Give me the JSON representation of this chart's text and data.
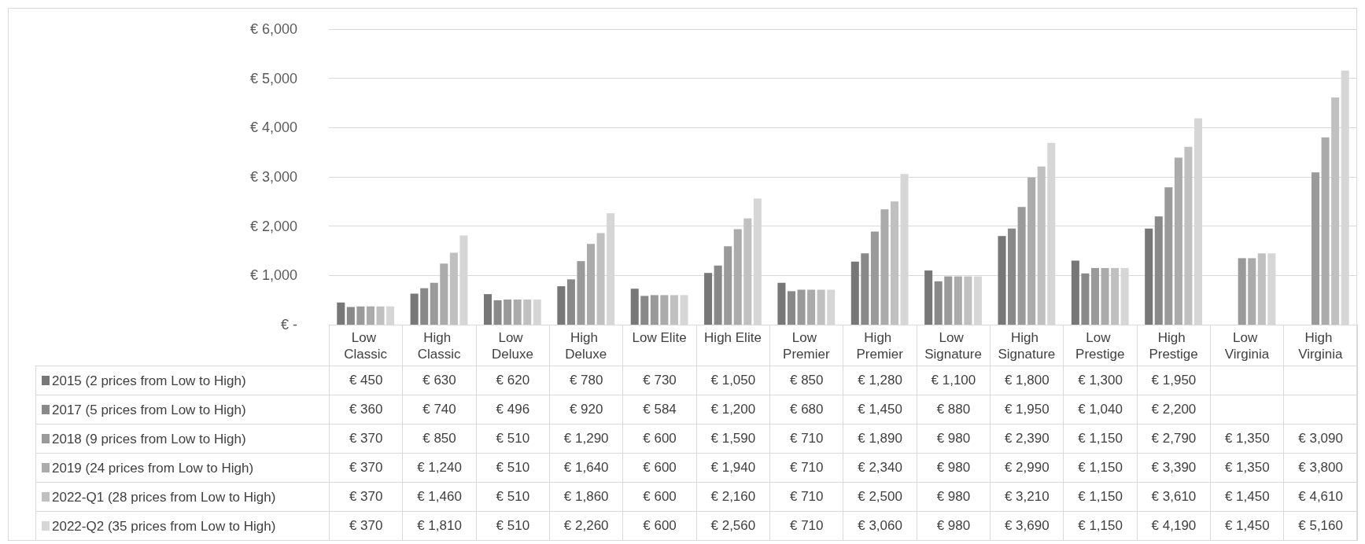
{
  "chart_data": {
    "type": "bar",
    "categories": [
      "Low Classic",
      "High Classic",
      "Low Deluxe",
      "High Deluxe",
      "Low Elite",
      "High Elite",
      "Low Premier",
      "High Premier",
      "Low Signature",
      "High Signature",
      "Low Prestige",
      "High Prestige",
      "Low Virginia",
      "High Virginia"
    ],
    "series": [
      {
        "name": "2015 (2 prices from Low to High)",
        "color": "#777777",
        "values": [
          450,
          630,
          620,
          780,
          730,
          1050,
          850,
          1280,
          1100,
          1800,
          1300,
          1950,
          null,
          null
        ],
        "value_labels": [
          "€ 450",
          "€ 630",
          "€ 620",
          "€ 780",
          "€ 730",
          "€ 1,050",
          "€ 850",
          "€ 1,280",
          "€ 1,100",
          "€ 1,800",
          "€ 1,300",
          "€ 1,950",
          null,
          null
        ]
      },
      {
        "name": "2017 (5 prices from Low to High)",
        "color": "#898989",
        "values": [
          360,
          740,
          496,
          920,
          584,
          1200,
          680,
          1450,
          880,
          1950,
          1040,
          2200,
          null,
          null
        ],
        "value_labels": [
          "€ 360",
          "€ 740",
          "€ 496",
          "€ 920",
          "€ 584",
          "€ 1,200",
          "€ 680",
          "€ 1,450",
          "€ 880",
          "€ 1,950",
          "€ 1,040",
          "€ 2,200",
          null,
          null
        ]
      },
      {
        "name": "2018 (9 prices from Low to High)",
        "color": "#9a9a9a",
        "values": [
          370,
          850,
          510,
          1290,
          600,
          1590,
          710,
          1890,
          980,
          2390,
          1150,
          2790,
          1350,
          3090
        ],
        "value_labels": [
          "€ 370",
          "€ 850",
          "€ 510",
          "€ 1,290",
          "€ 600",
          "€ 1,590",
          "€ 710",
          "€ 1,890",
          "€ 980",
          "€ 2,390",
          "€ 1,150",
          "€ 2,790",
          "€ 1,350",
          "€ 3,090"
        ]
      },
      {
        "name": "2019 (24 prices from Low to High)",
        "color": "#ababab",
        "values": [
          370,
          1240,
          510,
          1640,
          600,
          1940,
          710,
          2340,
          980,
          2990,
          1150,
          3390,
          1350,
          3800
        ],
        "value_labels": [
          "€ 370",
          "€ 1,240",
          "€ 510",
          "€ 1,640",
          "€ 600",
          "€ 1,940",
          "€ 710",
          "€ 2,340",
          "€ 980",
          "€ 2,990",
          "€ 1,150",
          "€ 3,390",
          "€ 1,350",
          "€ 3,800"
        ]
      },
      {
        "name": "2022-Q1 (28 prices from Low to High)",
        "color": "#c0c0c0",
        "values": [
          370,
          1460,
          510,
          1860,
          600,
          2160,
          710,
          2500,
          980,
          3210,
          1150,
          3610,
          1450,
          4610
        ],
        "value_labels": [
          "€ 370",
          "€ 1,460",
          "€ 510",
          "€ 1,860",
          "€ 600",
          "€ 2,160",
          "€ 710",
          "€ 2,500",
          "€ 980",
          "€ 3,210",
          "€ 1,150",
          "€ 3,610",
          "€ 1,450",
          "€ 4,610"
        ]
      },
      {
        "name": "2022-Q2 (35 prices from Low to High)",
        "color": "#d6d6d6",
        "values": [
          370,
          1810,
          510,
          2260,
          600,
          2560,
          710,
          3060,
          980,
          3690,
          1150,
          4190,
          1450,
          5160
        ],
        "value_labels": [
          "€ 370",
          "€ 1,810",
          "€ 510",
          "€ 2,260",
          "€ 600",
          "€ 2,560",
          "€ 710",
          "€ 3,060",
          "€ 980",
          "€ 3,690",
          "€ 1,150",
          "€ 4,190",
          "€ 1,450",
          "€ 5,160"
        ]
      }
    ],
    "ylim": [
      0,
      6000
    ],
    "yticks": [
      {
        "value": 0,
        "label": "€ -"
      },
      {
        "value": 1000,
        "label": "€ 1,000"
      },
      {
        "value": 2000,
        "label": "€ 2,000"
      },
      {
        "value": 3000,
        "label": "€ 3,000"
      },
      {
        "value": 4000,
        "label": "€ 4,000"
      },
      {
        "value": 5000,
        "label": "€ 5,000"
      },
      {
        "value": 6000,
        "label": "€ 6,000"
      }
    ],
    "grid": "y",
    "legend": "bottom left"
  }
}
